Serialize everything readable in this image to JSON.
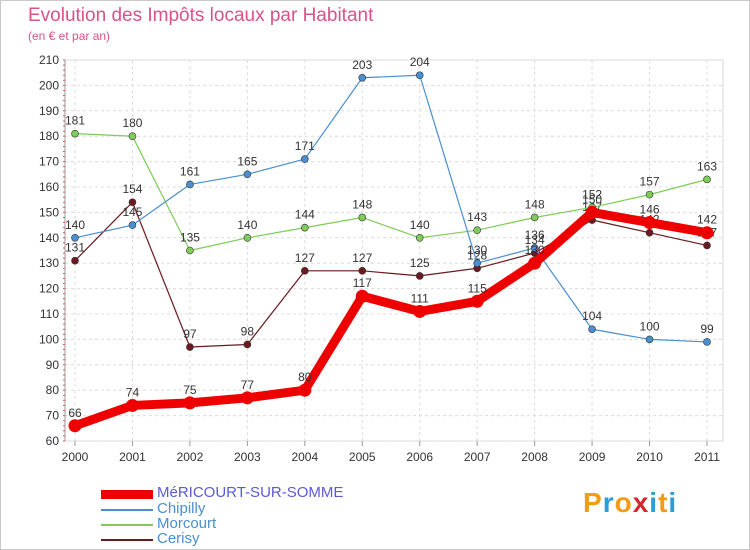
{
  "title": "Evolution des Impôts locaux par Habitant",
  "subtitle": "(en € et par an)",
  "brand": {
    "text": "Proxiti",
    "letters": [
      "P",
      "r",
      "o",
      "x",
      "i",
      "t",
      "i"
    ],
    "colors": [
      "#f39c12",
      "#2a9fd6",
      "#f39c12",
      "#d9262c",
      "#2a9fd6",
      "#f39c12",
      "#2a9fd6"
    ]
  },
  "chart_data": {
    "type": "line",
    "title": "Evolution des Impôts locaux par Habitant",
    "ylabel": "(en € et par an)",
    "xlabel": "",
    "ylim": [
      60,
      210
    ],
    "ytick_step": 10,
    "categories": [
      "2000",
      "2001",
      "2002",
      "2003",
      "2004",
      "2005",
      "2006",
      "2007",
      "2008",
      "2009",
      "2010",
      "2011"
    ],
    "legend_position": "bottom-left",
    "series": [
      {
        "name": "Cerisy",
        "color": "#6b1a1f",
        "values": [
          131,
          154,
          97,
          98,
          127,
          127,
          125,
          128,
          134,
          147,
          142,
          137
        ],
        "labels": [
          "131",
          "154",
          "97",
          "98",
          "127",
          "127",
          "125",
          "128",
          "134",
          "147",
          "142",
          "137"
        ]
      },
      {
        "name": "Morcourt",
        "color": "#7fcc5a",
        "values": [
          181,
          180,
          135,
          140,
          144,
          148,
          140,
          143,
          148,
          152,
          157,
          163
        ],
        "labels": [
          "181",
          "180",
          "135",
          "140",
          "144",
          "148",
          "140",
          "143",
          "148",
          "152",
          "157",
          "163"
        ]
      },
      {
        "name": "Chipilly",
        "color": "#4a8fd0",
        "values": [
          140,
          145,
          161,
          165,
          171,
          203,
          204,
          130,
          136,
          104,
          100,
          99
        ],
        "labels": [
          "140",
          "145",
          "161",
          "165",
          "171",
          "203",
          "204",
          "130",
          "136",
          "104",
          "100",
          "99"
        ]
      },
      {
        "name": "MéRICOURT-SUR-SOMME",
        "color": "#ee0000",
        "values": [
          66,
          74,
          75,
          77,
          80,
          117,
          111,
          115,
          130,
          150,
          146,
          142
        ],
        "labels": [
          "66",
          "74",
          "75",
          "77",
          "80",
          "117",
          "111",
          "115",
          "130",
          "150",
          "146",
          "142"
        ]
      }
    ],
    "legend_order": [
      "MéRICOURT-SUR-SOMME",
      "Chipilly",
      "Morcourt",
      "Cerisy"
    ]
  }
}
